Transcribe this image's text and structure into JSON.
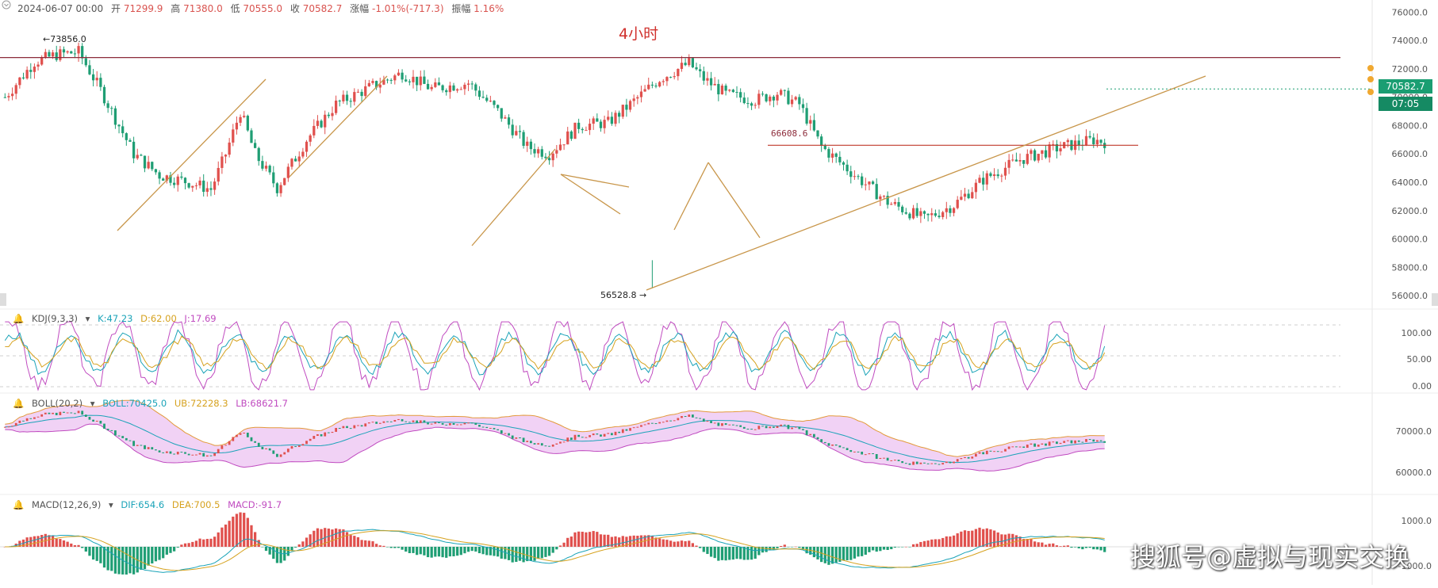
{
  "header": {
    "date": "2024-06-07 00:00",
    "open_label": "开",
    "open": "71299.9",
    "high_label": "高",
    "high": "71380.0",
    "low_label": "低",
    "low": "70555.0",
    "close_label": "收",
    "close": "70582.7",
    "change_label": "涨幅",
    "change": "-1.01%(-717.3)",
    "amp_label": "振幅",
    "amp": "1.16%"
  },
  "title": "4小时",
  "annotations": {
    "high_mark": "73856.0",
    "low_mark": "56528.8",
    "support_mark": "66608.6"
  },
  "price_tag": {
    "price": "70582.7",
    "countdown": "07:05"
  },
  "colors": {
    "up": "#e0504d",
    "down": "#1f9e74",
    "trend": "#c8964a",
    "resistance": "#8c2b3a",
    "support": "#c0392b"
  },
  "watermark": "搜狐号@虚拟与现实交换",
  "kdj": {
    "name": "KDJ(9,3,3)",
    "k": "K:47.23",
    "d": "D:62.00",
    "j": "J:17.69",
    "ticks": [
      "100.00",
      "50.00",
      "0.00"
    ]
  },
  "boll": {
    "name": "BOLL(20,2)",
    "mid": "BOLL:70425.0",
    "ub": "UB:72228.3",
    "lb": "LB:68621.7",
    "ticks": [
      "70000.0",
      "60000.0"
    ]
  },
  "macd": {
    "name": "MACD(12,26,9)",
    "dif": "DIF:654.6",
    "dea": "DEA:700.5",
    "macd": "MACD:-91.7",
    "ticks": [
      "1000.0",
      "-1000.0"
    ]
  },
  "chart_data": {
    "type": "candlestick",
    "title": "4小时",
    "y_ticks": [
      76000,
      74000,
      72000,
      70000,
      68000,
      66000,
      64000,
      62000,
      60000,
      58000,
      56000
    ],
    "y_tick_labels": [
      "76000.0",
      "74000.0",
      "72000.0",
      "70000.0",
      "68000.0",
      "66000.0",
      "64000.0",
      "62000.0",
      "60000.0",
      "58000.0",
      "56000.0"
    ],
    "ylim": [
      55500,
      76300
    ],
    "bar_count": 300,
    "anchors": [
      [
        0,
        70000
      ],
      [
        8,
        72500
      ],
      [
        14,
        73000
      ],
      [
        20,
        73200
      ],
      [
        26,
        70500
      ],
      [
        35,
        66000
      ],
      [
        42,
        64500
      ],
      [
        50,
        64000
      ],
      [
        56,
        63500
      ],
      [
        60,
        66000
      ],
      [
        64,
        69000
      ],
      [
        68,
        66000
      ],
      [
        74,
        63600
      ],
      [
        82,
        67000
      ],
      [
        90,
        69500
      ],
      [
        100,
        70800
      ],
      [
        108,
        71700
      ],
      [
        116,
        70600
      ],
      [
        126,
        71000
      ],
      [
        134,
        69000
      ],
      [
        142,
        66500
      ],
      [
        148,
        66000
      ],
      [
        156,
        68000
      ],
      [
        164,
        68200
      ],
      [
        170,
        69500
      ],
      [
        178,
        71300
      ],
      [
        186,
        72400
      ],
      [
        190,
        71300
      ],
      [
        196,
        70200
      ],
      [
        204,
        69800
      ],
      [
        210,
        70300
      ],
      [
        216,
        69500
      ],
      [
        222,
        66500
      ],
      [
        232,
        64300
      ],
      [
        240,
        62600
      ],
      [
        250,
        61400
      ],
      [
        258,
        62400
      ],
      [
        266,
        64200
      ],
      [
        276,
        65600
      ],
      [
        286,
        66400
      ],
      [
        296,
        67000
      ],
      [
        300,
        66800
      ]
    ],
    "levels": {
      "resistance": 72800,
      "support": 66608.6,
      "high": 73856.0,
      "low": 56528.8,
      "last": 70582.7
    }
  }
}
